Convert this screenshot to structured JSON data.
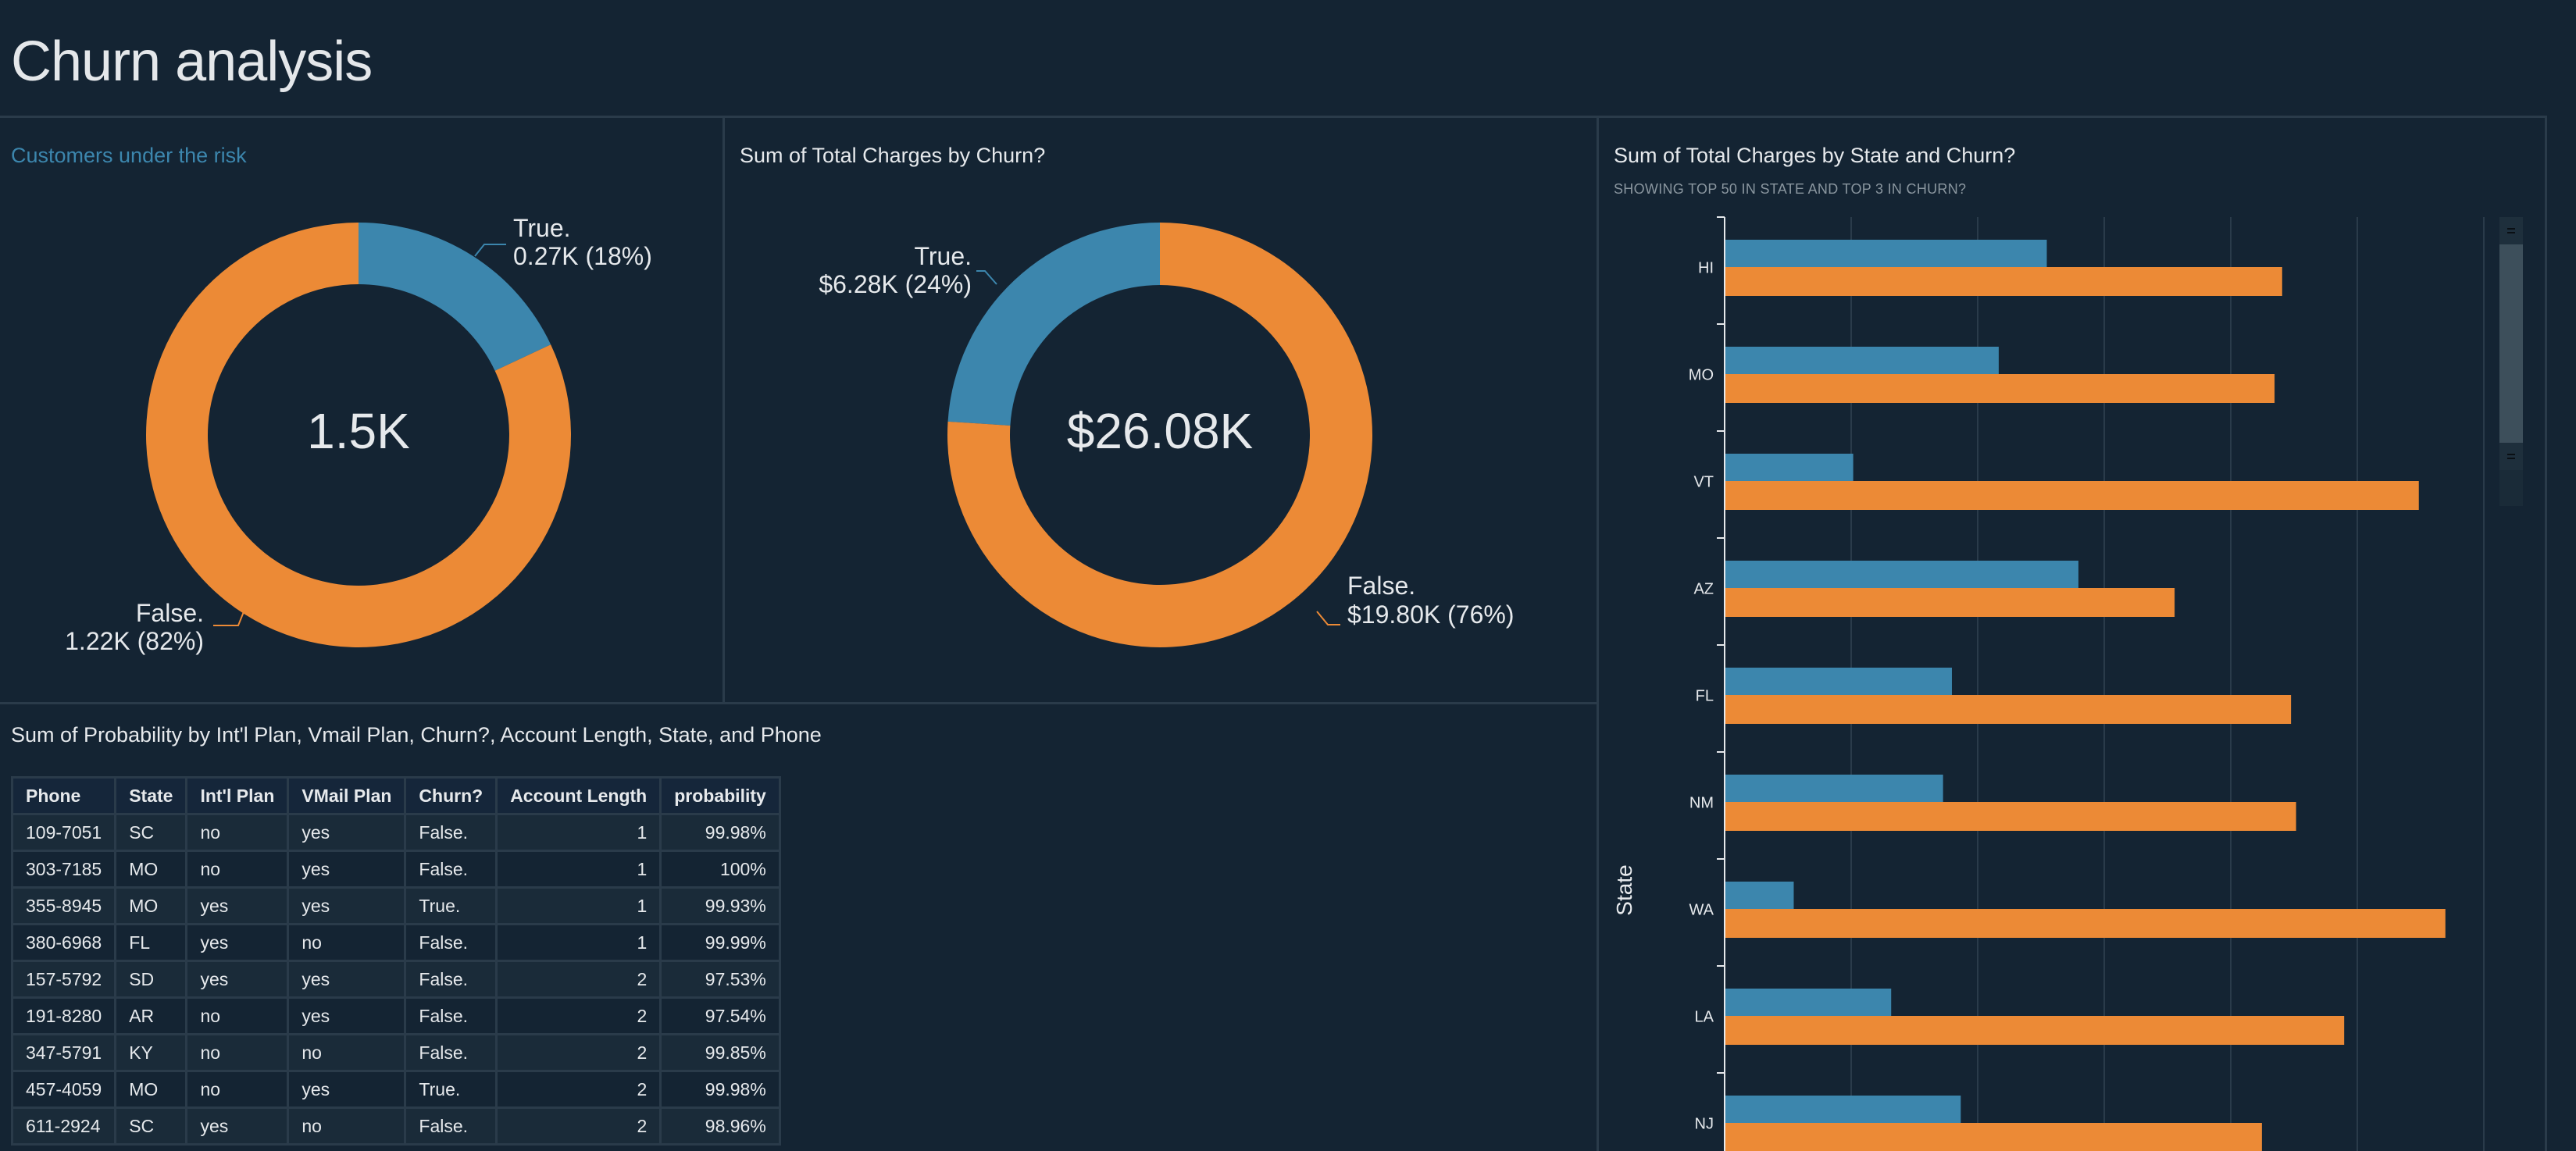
{
  "page": {
    "title": "Churn analysis"
  },
  "colors": {
    "background": "#142433",
    "true_series": "#3c86ad",
    "false_series": "#ec8a36",
    "grid": "#2a3b4a",
    "text": "#e6e9ec"
  },
  "donut_customers": {
    "title": "Customers under the risk",
    "center_label": "1.5K",
    "slices": [
      {
        "name": "True.",
        "label_value": "0.27K (18%)",
        "value": 0.27,
        "percent": 18,
        "color": "#3c86ad"
      },
      {
        "name": "False.",
        "label_value": "1.22K (82%)",
        "value": 1.22,
        "percent": 82,
        "color": "#ec8a36"
      }
    ]
  },
  "donut_charges": {
    "title": "Sum of Total Charges by Churn?",
    "center_label": "$26.08K",
    "slices": [
      {
        "name": "True.",
        "label_value": "$6.28K (24%)",
        "value": 6.28,
        "percent": 24,
        "color": "#3c86ad"
      },
      {
        "name": "False.",
        "label_value": "$19.80K (76%)",
        "value": 19.8,
        "percent": 76,
        "color": "#ec8a36"
      }
    ]
  },
  "table": {
    "title": "Sum of Probability by Int'l Plan, Vmail Plan, Churn?, Account Length, State, and Phone",
    "columns": [
      "Phone",
      "State",
      "Int'l Plan",
      "VMail Plan",
      "Churn?",
      "Account Length",
      "probability"
    ],
    "rows": [
      [
        "109-7051",
        "SC",
        "no",
        "yes",
        "False.",
        "1",
        "99.98%"
      ],
      [
        "303-7185",
        "MO",
        "no",
        "yes",
        "False.",
        "1",
        "100%"
      ],
      [
        "355-8945",
        "MO",
        "yes",
        "yes",
        "True.",
        "1",
        "99.93%"
      ],
      [
        "380-6968",
        "FL",
        "yes",
        "no",
        "False.",
        "1",
        "99.99%"
      ],
      [
        "157-5792",
        "SD",
        "yes",
        "yes",
        "False.",
        "2",
        "97.53%"
      ],
      [
        "191-8280",
        "AR",
        "no",
        "yes",
        "False.",
        "2",
        "97.54%"
      ],
      [
        "347-5791",
        "KY",
        "no",
        "no",
        "False.",
        "2",
        "99.85%"
      ],
      [
        "457-4059",
        "MO",
        "no",
        "yes",
        "True.",
        "2",
        "99.98%"
      ],
      [
        "611-2924",
        "SC",
        "yes",
        "no",
        "False.",
        "2",
        "98.96%"
      ]
    ]
  },
  "chart_data": [
    {
      "type": "pie",
      "title": "Customers under the risk",
      "center_label": "1.5K",
      "categories": [
        "True.",
        "False."
      ],
      "values": [
        0.27,
        1.22
      ],
      "units": "K customers",
      "percents": [
        18,
        82
      ]
    },
    {
      "type": "pie",
      "title": "Sum of Total Charges by Churn?",
      "center_label": "$26.08K",
      "categories": [
        "True.",
        "False."
      ],
      "values": [
        6.28,
        19.8
      ],
      "units": "$K",
      "percents": [
        24,
        76
      ]
    },
    {
      "type": "bar",
      "orientation": "horizontal",
      "title": "Sum of Total Charges by State and Churn?",
      "subtitle": "SHOWING TOP 50 IN STATE AND TOP 3 IN CHURN?",
      "ylabel": "State",
      "xlabel": "",
      "value_units": "gridline intervals (x-axis tick labels not visible)",
      "xlim": [
        0,
        6
      ],
      "grid": true,
      "categories": [
        "HI",
        "MO",
        "VT",
        "AZ",
        "FL",
        "NM",
        "WA",
        "LA",
        "NJ"
      ],
      "series": [
        {
          "name": "True.",
          "color": "#3c86ad",
          "values": [
            2.54,
            2.16,
            1.01,
            2.79,
            1.79,
            1.72,
            0.54,
            1.31,
            1.86
          ]
        },
        {
          "name": "False.",
          "color": "#ec8a36",
          "values": [
            4.4,
            4.34,
            5.48,
            3.55,
            4.47,
            4.51,
            5.69,
            4.89,
            4.24
          ]
        }
      ],
      "scroll_position": 0.0
    }
  ]
}
